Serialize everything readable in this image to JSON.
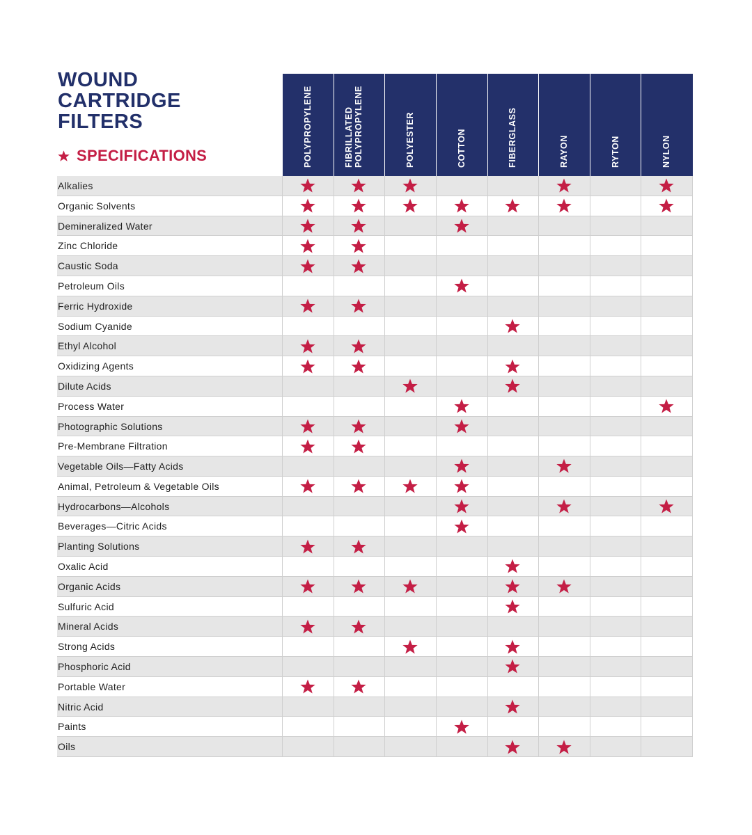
{
  "header": {
    "title_lines": [
      "WOUND",
      "CARTRIDGE",
      "FILTERS"
    ],
    "subtitle": "SPECIFICATIONS"
  },
  "table": {
    "columns": [
      "POLYPROPYLENE",
      "FIBRILLATED POLYPROPYLENE",
      "POLYESTER",
      "COTTON",
      "FIBERGLASS",
      "RAYON",
      "RYTON",
      "NYLON"
    ],
    "rows": [
      {
        "label": "Alkalies",
        "cells": [
          1,
          1,
          1,
          0,
          0,
          1,
          0,
          1
        ]
      },
      {
        "label": "Organic Solvents",
        "cells": [
          1,
          1,
          1,
          1,
          1,
          1,
          0,
          1
        ]
      },
      {
        "label": "Demineralized Water",
        "cells": [
          1,
          1,
          0,
          1,
          0,
          0,
          0,
          0
        ]
      },
      {
        "label": "Zinc Chloride",
        "cells": [
          1,
          1,
          0,
          0,
          0,
          0,
          0,
          0
        ]
      },
      {
        "label": "Caustic Soda",
        "cells": [
          1,
          1,
          0,
          0,
          0,
          0,
          0,
          0
        ]
      },
      {
        "label": "Petroleum Oils",
        "cells": [
          0,
          0,
          0,
          1,
          0,
          0,
          0,
          0
        ]
      },
      {
        "label": "Ferric Hydroxide",
        "cells": [
          1,
          1,
          0,
          0,
          0,
          0,
          0,
          0
        ]
      },
      {
        "label": "Sodium Cyanide",
        "cells": [
          0,
          0,
          0,
          0,
          1,
          0,
          0,
          0
        ]
      },
      {
        "label": "Ethyl Alcohol",
        "cells": [
          1,
          1,
          0,
          0,
          0,
          0,
          0,
          0
        ]
      },
      {
        "label": "Oxidizing Agents",
        "cells": [
          1,
          1,
          0,
          0,
          1,
          0,
          0,
          0
        ]
      },
      {
        "label": "Dilute Acids",
        "cells": [
          0,
          0,
          1,
          0,
          1,
          0,
          0,
          0
        ]
      },
      {
        "label": "Process Water",
        "cells": [
          0,
          0,
          0,
          1,
          0,
          0,
          0,
          1
        ]
      },
      {
        "label": "Photographic Solutions",
        "cells": [
          1,
          1,
          0,
          1,
          0,
          0,
          0,
          0
        ]
      },
      {
        "label": "Pre-Membrane Filtration",
        "cells": [
          1,
          1,
          0,
          0,
          0,
          0,
          0,
          0
        ]
      },
      {
        "label": "Vegetable Oils—Fatty Acids",
        "cells": [
          0,
          0,
          0,
          1,
          0,
          1,
          0,
          0
        ]
      },
      {
        "label": "Animal, Petroleum & Vegetable Oils",
        "cells": [
          1,
          1,
          1,
          1,
          0,
          0,
          0,
          0
        ]
      },
      {
        "label": "Hydrocarbons—Alcohols",
        "cells": [
          0,
          0,
          0,
          1,
          0,
          1,
          0,
          1
        ]
      },
      {
        "label": "Beverages—Citric Acids",
        "cells": [
          0,
          0,
          0,
          1,
          0,
          0,
          0,
          0
        ]
      },
      {
        "label": "Planting Solutions",
        "cells": [
          1,
          1,
          0,
          0,
          0,
          0,
          0,
          0
        ]
      },
      {
        "label": "Oxalic Acid",
        "cells": [
          0,
          0,
          0,
          0,
          1,
          0,
          0,
          0
        ]
      },
      {
        "label": "Organic Acids",
        "cells": [
          1,
          1,
          1,
          0,
          1,
          1,
          0,
          0
        ]
      },
      {
        "label": "Sulfuric Acid",
        "cells": [
          0,
          0,
          0,
          0,
          1,
          0,
          0,
          0
        ]
      },
      {
        "label": "Mineral Acids",
        "cells": [
          1,
          1,
          0,
          0,
          0,
          0,
          0,
          0
        ]
      },
      {
        "label": "Strong Acids",
        "cells": [
          0,
          0,
          1,
          0,
          1,
          0,
          0,
          0
        ]
      },
      {
        "label": "Phosphoric Acid",
        "cells": [
          0,
          0,
          0,
          0,
          1,
          0,
          0,
          0
        ]
      },
      {
        "label": "Portable Water",
        "cells": [
          1,
          1,
          0,
          0,
          0,
          0,
          0,
          0
        ]
      },
      {
        "label": "Nitric Acid",
        "cells": [
          0,
          0,
          0,
          0,
          1,
          0,
          0,
          0
        ]
      },
      {
        "label": "Paints",
        "cells": [
          0,
          0,
          0,
          1,
          0,
          0,
          0,
          0
        ]
      },
      {
        "label": "Oils",
        "cells": [
          0,
          0,
          0,
          0,
          1,
          1,
          0,
          0
        ]
      }
    ]
  }
}
